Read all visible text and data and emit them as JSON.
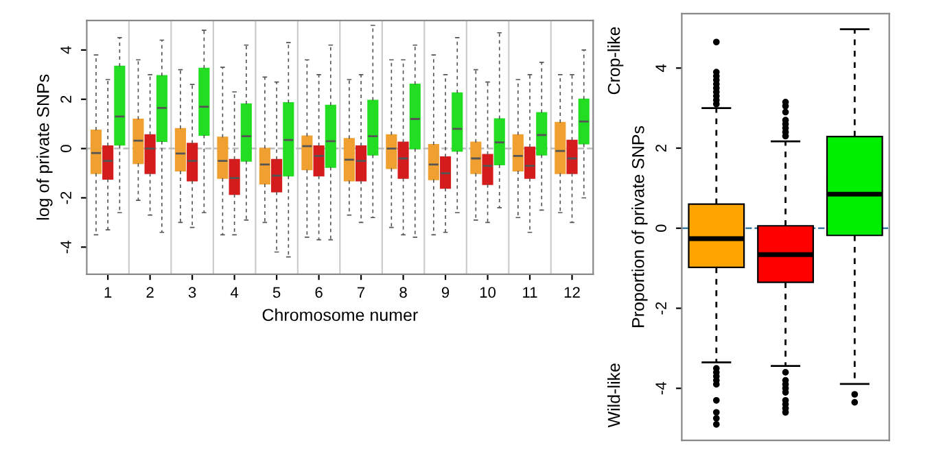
{
  "chart_data": [
    {
      "type": "box",
      "xlabel": "Chromosome numer",
      "ylabel": "log of private SNPs",
      "categories": [
        "1",
        "2",
        "3",
        "4",
        "5",
        "6",
        "7",
        "8",
        "9",
        "10",
        "11",
        "12"
      ],
      "ylim": [
        -5.1,
        5.2
      ],
      "yticks": [
        -4,
        -2,
        0,
        2,
        4
      ],
      "grid": "x",
      "ref_lines": [
        {
          "axis": "y",
          "value": 0,
          "color": "#bbbbbb",
          "line_style": "dashed"
        }
      ],
      "series": [
        {
          "color": "#f0a030",
          "boxes": [
            {
              "low": -3.5,
              "q1": -1.0,
              "median": -0.18,
              "q3": 0.74,
              "high": 3.8
            },
            {
              "low": -2.1,
              "q1": -0.6,
              "median": 0.32,
              "q3": 1.18,
              "high": 3.6
            },
            {
              "low": -3.0,
              "q1": -0.9,
              "median": -0.2,
              "q3": 0.8,
              "high": 3.2
            },
            {
              "low": -3.5,
              "q1": -1.2,
              "median": -0.5,
              "q3": 0.45,
              "high": 3.3
            },
            {
              "low": -3.0,
              "q1": -1.43,
              "median": -0.65,
              "q3": 0.0,
              "high": 2.9
            },
            {
              "low": -3.6,
              "q1": -0.85,
              "median": 0.1,
              "q3": 0.5,
              "high": 3.6
            },
            {
              "low": -2.7,
              "q1": -1.3,
              "median": -0.45,
              "q3": 0.4,
              "high": 2.8
            },
            {
              "low": -3.2,
              "q1": -0.8,
              "median": 0.0,
              "q3": 0.55,
              "high": 3.6
            },
            {
              "low": -3.5,
              "q1": -1.25,
              "median": -0.65,
              "q3": 0.15,
              "high": 3.8
            },
            {
              "low": -2.9,
              "q1": -1.0,
              "median": -0.4,
              "q3": 0.25,
              "high": 3.2
            },
            {
              "low": -2.8,
              "q1": -0.9,
              "median": -0.3,
              "q3": 0.55,
              "high": 2.8
            },
            {
              "low": -2.6,
              "q1": -1.0,
              "median": -0.1,
              "q3": 1.05,
              "high": 3.0
            }
          ]
        },
        {
          "color": "#d41c1c",
          "boxes": [
            {
              "low": -3.3,
              "q1": -1.23,
              "median": -0.5,
              "q3": 0.1,
              "high": 2.8
            },
            {
              "low": -2.7,
              "q1": -1.0,
              "median": 0.0,
              "q3": 0.55,
              "high": 3.0
            },
            {
              "low": -3.2,
              "q1": -1.3,
              "median": -0.5,
              "q3": 0.2,
              "high": 2.6
            },
            {
              "low": -3.5,
              "q1": -1.85,
              "median": -1.2,
              "q3": -0.45,
              "high": 2.3
            },
            {
              "low": -4.2,
              "q1": -1.75,
              "median": -1.1,
              "q3": -0.45,
              "high": 2.7
            },
            {
              "low": -3.7,
              "q1": -1.1,
              "median": -0.3,
              "q3": 0.1,
              "high": 3.0
            },
            {
              "low": -3.0,
              "q1": -1.3,
              "median": -0.5,
              "q3": 0.1,
              "high": 3.0
            },
            {
              "low": -3.5,
              "q1": -1.2,
              "median": -0.4,
              "q3": 0.25,
              "high": 3.6
            },
            {
              "low": -3.4,
              "q1": -1.6,
              "median": -1.0,
              "q3": -0.35,
              "high": 3.0
            },
            {
              "low": -3.0,
              "q1": -1.45,
              "median": -0.7,
              "q3": -0.25,
              "high": 2.7
            },
            {
              "low": -3.4,
              "q1": -1.2,
              "median": -0.7,
              "q3": 0.05,
              "high": 3.0
            },
            {
              "low": -3.0,
              "q1": -1.0,
              "median": -0.4,
              "q3": 0.33,
              "high": 3.0
            }
          ]
        },
        {
          "color": "#22dd22",
          "boxes": [
            {
              "low": -2.6,
              "q1": 0.15,
              "median": 1.3,
              "q3": 3.33,
              "high": 4.5
            },
            {
              "low": -3.4,
              "q1": 0.3,
              "median": 1.65,
              "q3": 2.95,
              "high": 4.4
            },
            {
              "low": -2.6,
              "q1": 0.55,
              "median": 1.7,
              "q3": 3.25,
              "high": 4.8
            },
            {
              "low": -2.9,
              "q1": -0.5,
              "median": 0.5,
              "q3": 1.8,
              "high": 4.2
            },
            {
              "low": -4.4,
              "q1": -1.1,
              "median": 0.35,
              "q3": 1.85,
              "high": 4.3
            },
            {
              "low": -3.7,
              "q1": -0.75,
              "median": 0.3,
              "q3": 1.75,
              "high": 4.2
            },
            {
              "low": -2.8,
              "q1": -0.25,
              "median": 0.5,
              "q3": 1.95,
              "high": 5.0
            },
            {
              "low": -3.6,
              "q1": 0.0,
              "median": 1.2,
              "q3": 2.6,
              "high": 4.2
            },
            {
              "low": -2.6,
              "q1": -0.1,
              "median": 0.8,
              "q3": 2.25,
              "high": 4.5
            },
            {
              "low": -2.4,
              "q1": -0.65,
              "median": 0.25,
              "q3": 1.2,
              "high": 4.7
            },
            {
              "low": -2.5,
              "q1": -0.25,
              "median": 0.55,
              "q3": 1.45,
              "high": 3.5
            },
            {
              "low": -2.0,
              "q1": 0.2,
              "median": 1.1,
              "q3": 2.0,
              "high": 4.0
            }
          ]
        }
      ]
    },
    {
      "type": "box",
      "ylabel": "Proportion of private SNPs",
      "categories": [
        null,
        null,
        null
      ],
      "ylim": [
        -5.3,
        5.36
      ],
      "yticks": [
        -4,
        -2,
        0,
        2,
        4
      ],
      "tick_labels": "y",
      "colors": [
        "#ffa500",
        "#ff0000",
        "#00ee00"
      ],
      "ref_lines": [
        {
          "axis": "y",
          "value": 0,
          "color": "#3a7ca5",
          "line_style": "dashed"
        }
      ],
      "annotations": [
        "Crop-like",
        "Wild-like"
      ],
      "boxes": [
        {
          "low": -3.35,
          "q1": -0.98,
          "median": -0.26,
          "q3": 0.6,
          "high": 3.0,
          "outliers": [
            3.1,
            3.2,
            3.3,
            3.4,
            3.5,
            3.6,
            3.7,
            3.8,
            3.9,
            4.65,
            -3.5,
            -3.6,
            -3.7,
            -3.8,
            -3.9,
            -4.3,
            -4.6,
            -4.75,
            -4.9
          ]
        },
        {
          "low": -3.44,
          "q1": -1.35,
          "median": -0.66,
          "q3": 0.06,
          "high": 2.17,
          "outliers": [
            2.3,
            2.4,
            2.5,
            2.6,
            2.7,
            2.9,
            3.05,
            3.15,
            -3.6,
            -3.8,
            -3.9,
            -4.0,
            -4.1,
            -4.3,
            -4.4,
            -4.5,
            -4.6
          ]
        },
        {
          "low": -3.89,
          "q1": -0.18,
          "median": 0.85,
          "q3": 2.29,
          "high": 4.97,
          "outliers": [
            -4.15,
            -4.35
          ]
        }
      ]
    }
  ]
}
